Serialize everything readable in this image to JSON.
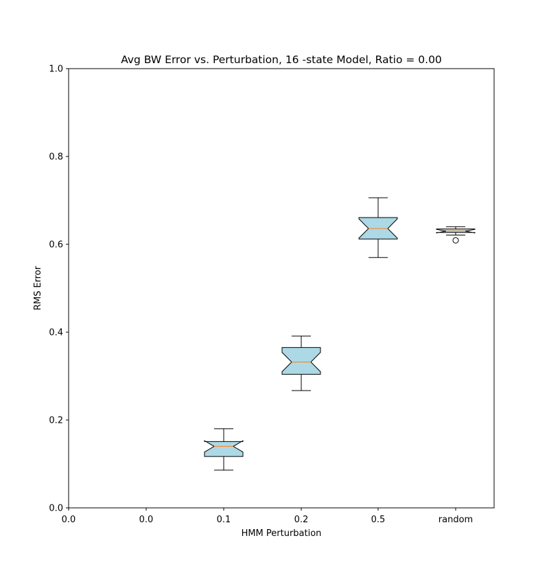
{
  "chart_data": {
    "type": "box",
    "title": "Avg BW Error vs. Perturbation,  16 -state Model, Ratio =  0.00",
    "xlabel": "HMM Perturbation",
    "ylabel": "RMS Error",
    "ylim": [
      0.0,
      1.0
    ],
    "yticks": [
      "0.0",
      "0.2",
      "0.4",
      "0.6",
      "0.8",
      "1.0"
    ],
    "xtick_origin_label": "0.0",
    "categories": [
      "0.0",
      "0.1",
      "0.2",
      "0.5",
      "random"
    ],
    "notched": true,
    "box_fill": "#add8e6",
    "median_color": "#ff7f0e",
    "boxes": [
      {
        "label": "0.0",
        "whislo": 0.0,
        "q1": 0.0,
        "med": 0.0,
        "q3": 0.0,
        "whishi": 0.0,
        "notch_lo": 0.0,
        "notch_hi": 0.0,
        "fliers": []
      },
      {
        "label": "0.1",
        "whislo": 0.086,
        "q1": 0.117,
        "med": 0.14,
        "q3": 0.151,
        "whishi": 0.18,
        "notch_lo": 0.127,
        "notch_hi": 0.153,
        "fliers": []
      },
      {
        "label": "0.2",
        "whislo": 0.267,
        "q1": 0.304,
        "med": 0.332,
        "q3": 0.365,
        "whishi": 0.391,
        "notch_lo": 0.31,
        "notch_hi": 0.354,
        "fliers": []
      },
      {
        "label": "0.5",
        "whislo": 0.57,
        "q1": 0.612,
        "med": 0.636,
        "q3": 0.661,
        "whishi": 0.706,
        "notch_lo": 0.614,
        "notch_hi": 0.658,
        "fliers": []
      },
      {
        "label": "random",
        "whislo": 0.621,
        "q1": 0.627,
        "med": 0.63,
        "q3": 0.635,
        "whishi": 0.64,
        "notch_lo": 0.626,
        "notch_hi": 0.634,
        "fliers": [
          0.609
        ]
      }
    ]
  }
}
